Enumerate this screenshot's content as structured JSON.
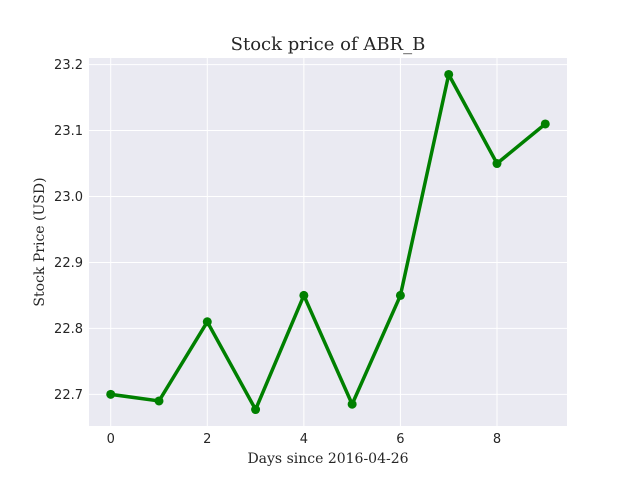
{
  "chart_data": {
    "type": "line",
    "title": "Stock price of ABR_B",
    "xlabel": "Days since 2016-04-26",
    "ylabel": "Stock Price (USD)",
    "x": [
      0,
      1,
      2,
      3,
      4,
      5,
      6,
      7,
      8,
      9
    ],
    "series": [
      {
        "values": [
          22.7,
          22.69,
          22.81,
          22.677,
          22.85,
          22.685,
          22.85,
          23.185,
          23.05,
          23.11
        ],
        "color": "#008000"
      }
    ],
    "xlim": [
      -0.45,
      9.45
    ],
    "ylim": [
      22.652,
      23.21
    ],
    "xticks": [
      0,
      2,
      4,
      6,
      8
    ],
    "xtick_labels": [
      "0",
      "2",
      "4",
      "6",
      "8"
    ],
    "yticks": [
      22.7,
      22.8,
      22.9,
      23.0,
      23.1,
      23.2
    ],
    "ytick_labels": [
      "22.7",
      "22.8",
      "22.9",
      "23.0",
      "23.1",
      "23.2"
    ],
    "grid": true,
    "marker": "circle",
    "background_color": "#eaeaf2"
  }
}
